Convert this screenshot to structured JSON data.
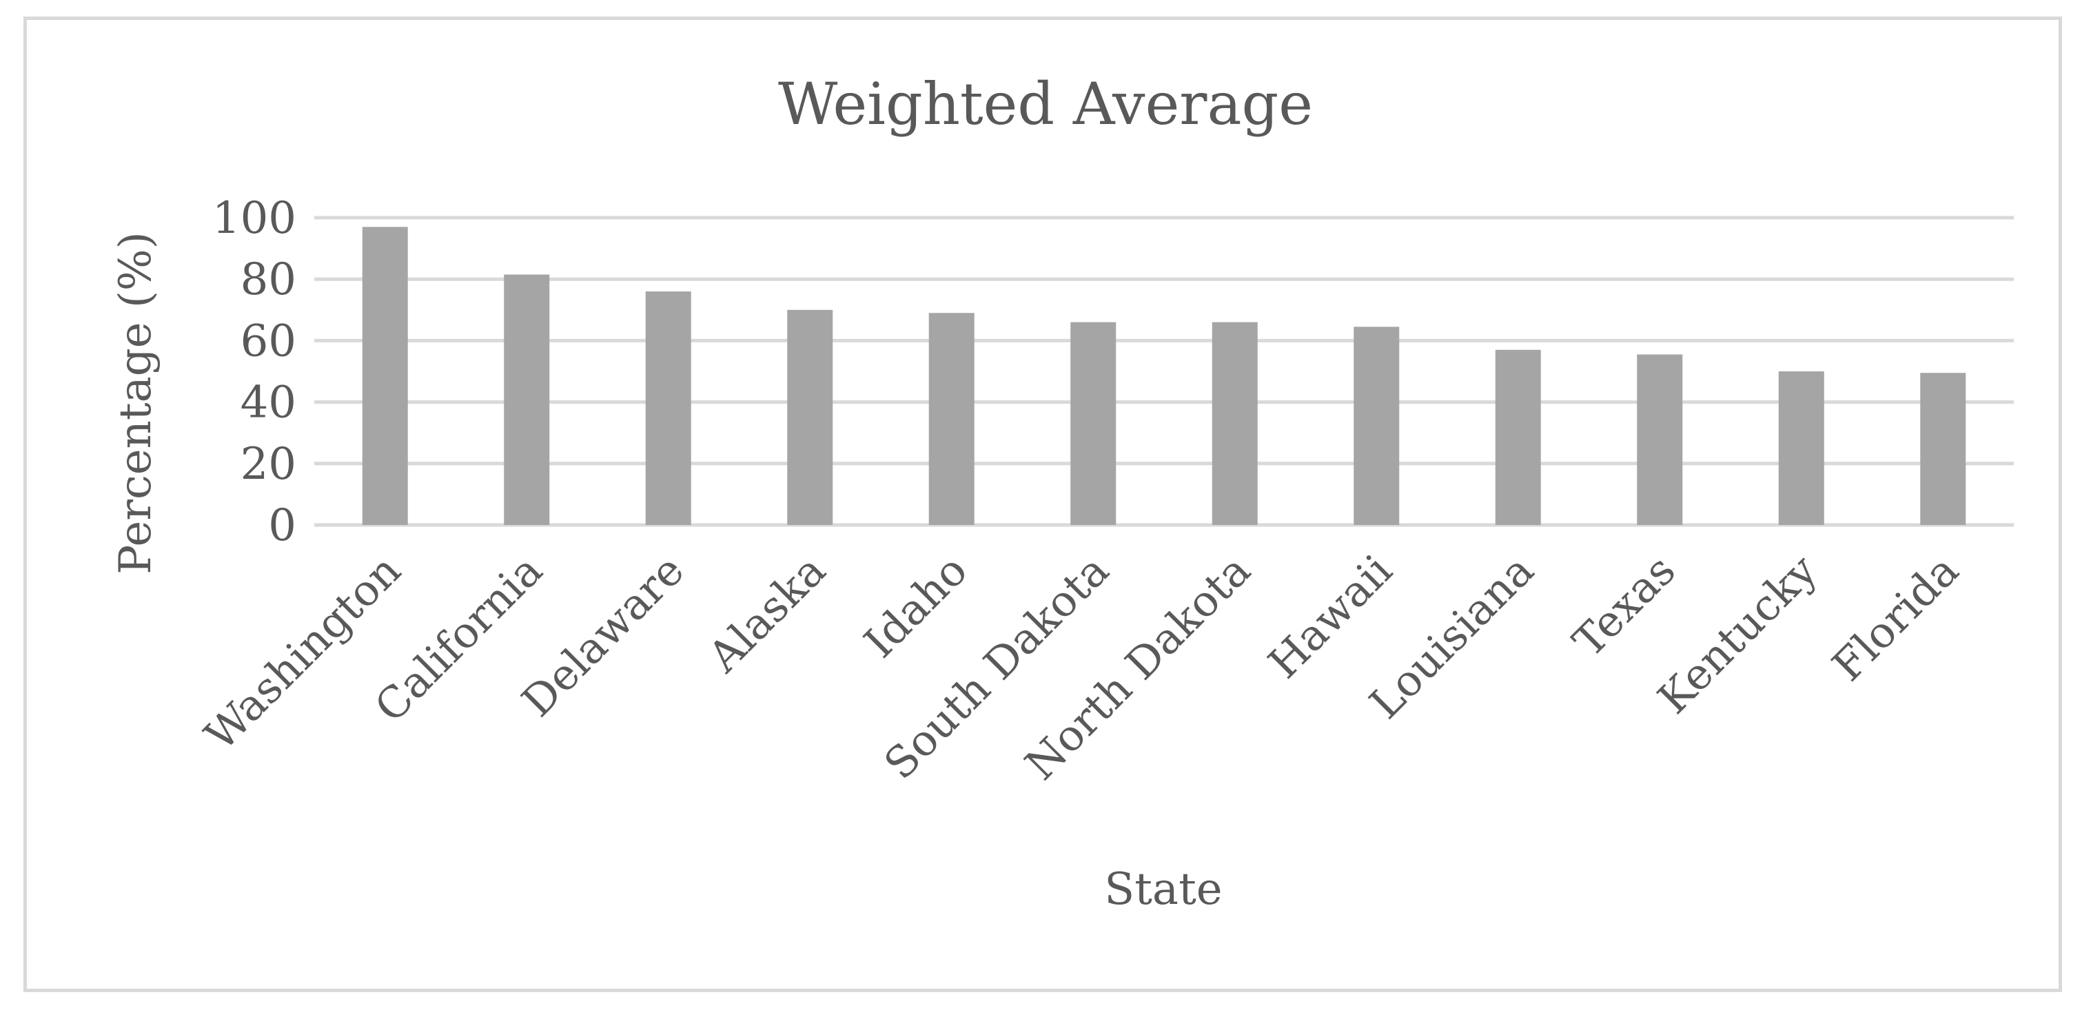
{
  "chart_data": {
    "type": "bar",
    "title": "Weighted Average",
    "xlabel": "State",
    "ylabel": "Percentage (%)",
    "ylim": [
      0,
      100
    ],
    "yticks": [
      0,
      20,
      40,
      60,
      80,
      100
    ],
    "grid": true,
    "legend": "none",
    "bar_color": "#a5a5a5",
    "categories": [
      "Washington",
      "California",
      "Delaware",
      "Alaska",
      "Idaho",
      "South Dakota",
      "North Dakota",
      "Hawaii",
      "Louisiana",
      "Texas",
      "Kentucky",
      "Florida"
    ],
    "series": [
      {
        "values": [
          97,
          81.5,
          76,
          70,
          69,
          66,
          66,
          64.5,
          57,
          55.5,
          50,
          49.5
        ]
      }
    ]
  }
}
